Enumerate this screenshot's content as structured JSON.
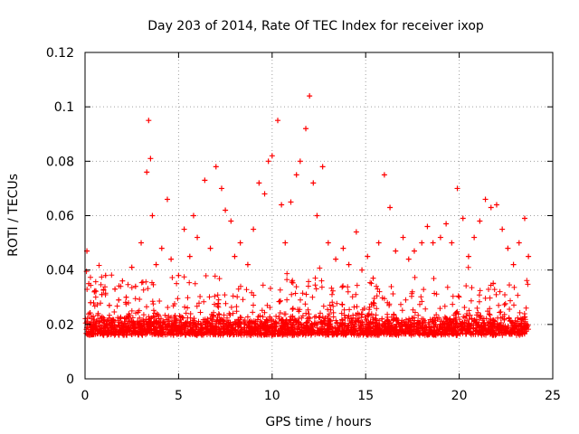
{
  "chart_data": {
    "type": "scatter",
    "title": "Day 203 of 2014, Rate Of TEC Index for receiver ixop",
    "xlabel": "GPS time / hours",
    "ylabel": "ROTI / TECUs",
    "xlim": [
      0,
      25
    ],
    "ylim": [
      0,
      0.12
    ],
    "x_ticks": [
      0,
      5,
      10,
      15,
      20,
      25
    ],
    "x_tick_labels": [
      "0",
      "5",
      "10",
      "15",
      "20",
      "25"
    ],
    "y_ticks": [
      0,
      0.02,
      0.04,
      0.06,
      0.08,
      0.1,
      0.12
    ],
    "y_tick_labels": [
      "0",
      "0.02",
      "0.04",
      "0.06",
      "0.08",
      "0.1",
      "0.12"
    ],
    "grid": true,
    "marker": "+",
    "point_color": "#ff0000",
    "series": [
      {
        "name": "ROTI",
        "x": [
          0.1,
          0.2,
          0.3,
          0.5,
          0.7,
          0.9,
          1.1,
          1.3,
          1.6,
          1.8,
          2.0,
          2.2,
          2.5,
          2.7,
          3.0,
          3.3,
          3.4,
          3.5,
          3.6,
          3.8,
          4.1,
          4.4,
          4.6,
          5.0,
          5.3,
          5.6,
          5.8,
          6.0,
          6.4,
          6.7,
          7.0,
          7.3,
          7.5,
          7.8,
          8.0,
          8.3,
          8.7,
          9.0,
          9.3,
          9.6,
          9.8,
          10.0,
          10.3,
          10.5,
          10.7,
          11.0,
          11.3,
          11.5,
          11.8,
          12.0,
          12.2,
          12.4,
          12.7,
          13.0,
          13.4,
          13.8,
          14.1,
          14.5,
          14.8,
          15.1,
          15.4,
          15.7,
          16.0,
          16.3,
          16.6,
          17.0,
          17.3,
          17.6,
          18.0,
          18.3,
          18.6,
          19.0,
          19.3,
          19.6,
          19.9,
          20.2,
          20.5,
          20.8,
          21.1,
          21.4,
          21.7,
          22.0,
          22.3,
          22.6,
          22.9,
          23.2,
          23.5,
          23.7
        ],
        "y": [
          0.047,
          0.035,
          0.028,
          0.032,
          0.024,
          0.031,
          0.038,
          0.027,
          0.033,
          0.029,
          0.036,
          0.03,
          0.041,
          0.034,
          0.05,
          0.076,
          0.095,
          0.081,
          0.06,
          0.042,
          0.048,
          0.066,
          0.044,
          0.038,
          0.055,
          0.045,
          0.06,
          0.052,
          0.073,
          0.048,
          0.078,
          0.07,
          0.062,
          0.058,
          0.045,
          0.05,
          0.042,
          0.055,
          0.072,
          0.068,
          0.08,
          0.082,
          0.095,
          0.064,
          0.05,
          0.065,
          0.075,
          0.08,
          0.092,
          0.104,
          0.072,
          0.06,
          0.078,
          0.05,
          0.044,
          0.048,
          0.042,
          0.054,
          0.04,
          0.045,
          0.037,
          0.05,
          0.075,
          0.063,
          0.047,
          0.052,
          0.044,
          0.047,
          0.05,
          0.056,
          0.05,
          0.052,
          0.057,
          0.05,
          0.07,
          0.059,
          0.045,
          0.052,
          0.058,
          0.066,
          0.063,
          0.064,
          0.055,
          0.048,
          0.042,
          0.05,
          0.059,
          0.045
        ]
      }
    ]
  }
}
